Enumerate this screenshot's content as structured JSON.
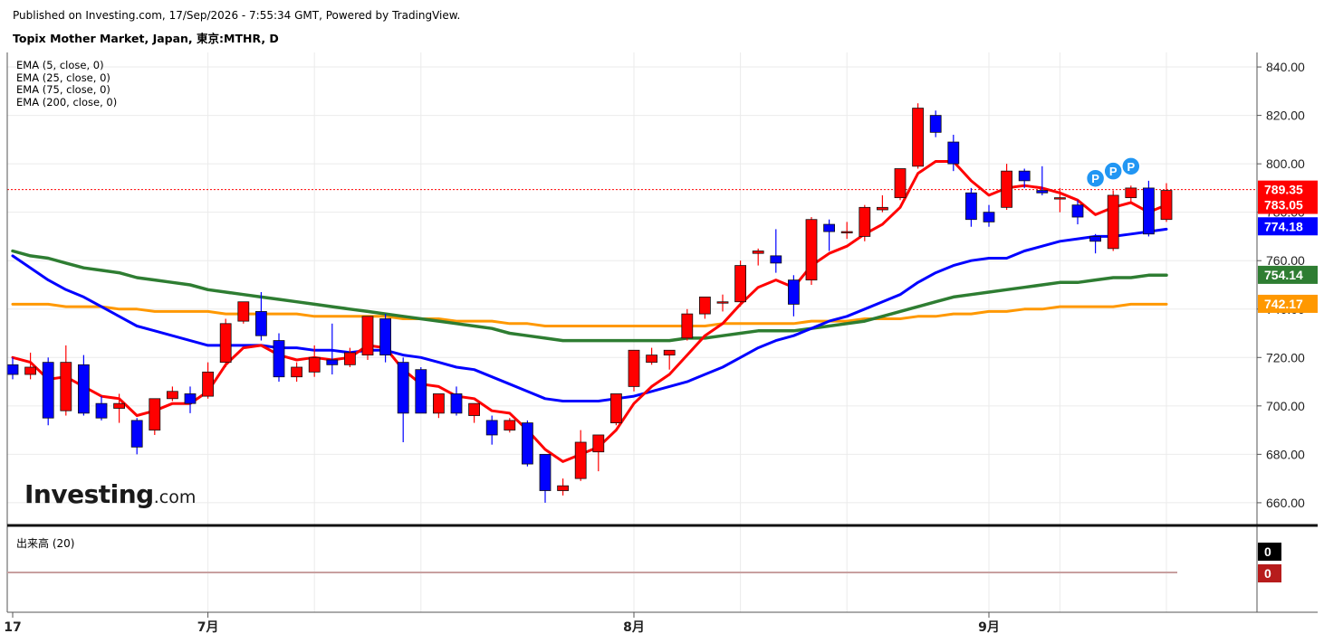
{
  "header": {
    "published": "Published on Investing.com, 17/Sep/2026 - 7:55:34 GMT, Powered by TradingView.",
    "title": "Topix Mother Market, Japan, 東京:MTHR, D"
  },
  "legend": [
    "EMA (5, close, 0)",
    "EMA (25, close, 0)",
    "EMA (75, close, 0)",
    "EMA (200, close, 0)"
  ],
  "volume_label": "出来高 (20)",
  "logo": {
    "main": "Investing",
    "sub": ".com"
  },
  "colors": {
    "up": "#ff0000",
    "down": "#0000ff",
    "ema5": "#ff0000",
    "ema25": "#0000ff",
    "ema75": "#2e7d32",
    "ema200": "#ff9800",
    "grid": "#ebebeb",
    "pivot": "#2196f3"
  },
  "chart_data": {
    "type": "candlestick",
    "y_ticks": [
      "840.00",
      "820.00",
      "800.00",
      "780.00",
      "760.00",
      "740.00",
      "720.00",
      "700.00",
      "680.00",
      "660.00"
    ],
    "ylim": [
      651,
      846
    ],
    "x_tick_labels": [
      {
        "label": "17",
        "index": 0
      },
      {
        "label": "7月",
        "index": 11
      },
      {
        "label": "8月",
        "index": 35
      },
      {
        "label": "9月",
        "index": 55
      }
    ],
    "candles": [
      {
        "o": 717,
        "h": 720,
        "l": 711,
        "c": 713
      },
      {
        "o": 713,
        "h": 722,
        "l": 711,
        "c": 716
      },
      {
        "o": 718,
        "h": 720,
        "l": 692,
        "c": 695
      },
      {
        "o": 698,
        "h": 725,
        "l": 696,
        "c": 718
      },
      {
        "o": 717,
        "h": 721,
        "l": 696,
        "c": 697
      },
      {
        "o": 701,
        "h": 704,
        "l": 694,
        "c": 695
      },
      {
        "o": 699,
        "h": 705,
        "l": 693,
        "c": 701
      },
      {
        "o": 694,
        "h": 695,
        "l": 680,
        "c": 683
      },
      {
        "o": 690,
        "h": 703,
        "l": 688,
        "c": 703
      },
      {
        "o": 703,
        "h": 708,
        "l": 702,
        "c": 706
      },
      {
        "o": 705,
        "h": 708,
        "l": 697,
        "c": 701
      },
      {
        "o": 704,
        "h": 718,
        "l": 703,
        "c": 714
      },
      {
        "o": 718,
        "h": 736,
        "l": 716,
        "c": 734
      },
      {
        "o": 735,
        "h": 743,
        "l": 734,
        "c": 743
      },
      {
        "o": 739,
        "h": 747,
        "l": 727,
        "c": 729
      },
      {
        "o": 727,
        "h": 730,
        "l": 710,
        "c": 712
      },
      {
        "o": 712,
        "h": 718,
        "l": 710,
        "c": 716
      },
      {
        "o": 714,
        "h": 725,
        "l": 712,
        "c": 720
      },
      {
        "o": 719,
        "h": 734,
        "l": 713,
        "c": 717
      },
      {
        "o": 717,
        "h": 724,
        "l": 716,
        "c": 722
      },
      {
        "o": 721,
        "h": 737,
        "l": 719,
        "c": 737
      },
      {
        "o": 736,
        "h": 738,
        "l": 718,
        "c": 721
      },
      {
        "o": 718,
        "h": 720,
        "l": 685,
        "c": 697
      },
      {
        "o": 715,
        "h": 716,
        "l": 697,
        "c": 697
      },
      {
        "o": 697,
        "h": 705,
        "l": 695,
        "c": 705
      },
      {
        "o": 705,
        "h": 708,
        "l": 696,
        "c": 697
      },
      {
        "o": 696,
        "h": 701,
        "l": 693,
        "c": 701
      },
      {
        "o": 694,
        "h": 696,
        "l": 684,
        "c": 688
      },
      {
        "o": 690,
        "h": 695,
        "l": 689,
        "c": 694
      },
      {
        "o": 693,
        "h": 694,
        "l": 675,
        "c": 676
      },
      {
        "o": 680,
        "h": 680,
        "l": 660,
        "c": 665
      },
      {
        "o": 665,
        "h": 670,
        "l": 663,
        "c": 667
      },
      {
        "o": 670,
        "h": 690,
        "l": 669,
        "c": 685
      },
      {
        "o": 681,
        "h": 688,
        "l": 673,
        "c": 688
      },
      {
        "o": 693,
        "h": 704,
        "l": 692,
        "c": 705
      },
      {
        "o": 708,
        "h": 723,
        "l": 706,
        "c": 723
      },
      {
        "o": 718,
        "h": 724,
        "l": 717,
        "c": 721
      },
      {
        "o": 721,
        "h": 723,
        "l": 715,
        "c": 723
      },
      {
        "o": 728,
        "h": 740,
        "l": 727,
        "c": 738
      },
      {
        "o": 738,
        "h": 745,
        "l": 736,
        "c": 745
      },
      {
        "o": 743,
        "h": 746,
        "l": 739,
        "c": 743
      },
      {
        "o": 743,
        "h": 760,
        "l": 741,
        "c": 758
      },
      {
        "o": 763,
        "h": 765,
        "l": 758,
        "c": 764
      },
      {
        "o": 762,
        "h": 773,
        "l": 755,
        "c": 759
      },
      {
        "o": 752,
        "h": 754,
        "l": 737,
        "c": 742
      },
      {
        "o": 752,
        "h": 778,
        "l": 750,
        "c": 777
      },
      {
        "o": 775,
        "h": 777,
        "l": 764,
        "c": 772
      },
      {
        "o": 772,
        "h": 776,
        "l": 769,
        "c": 772
      },
      {
        "o": 770,
        "h": 783,
        "l": 768,
        "c": 782
      },
      {
        "o": 781,
        "h": 787,
        "l": 780,
        "c": 782
      },
      {
        "o": 786,
        "h": 798,
        "l": 785,
        "c": 798
      },
      {
        "o": 799,
        "h": 825,
        "l": 798,
        "c": 823
      },
      {
        "o": 820,
        "h": 822,
        "l": 811,
        "c": 813
      },
      {
        "o": 809,
        "h": 812,
        "l": 797,
        "c": 800
      },
      {
        "o": 788,
        "h": 790,
        "l": 774,
        "c": 777
      },
      {
        "o": 780,
        "h": 783,
        "l": 774,
        "c": 776
      },
      {
        "o": 782,
        "h": 800,
        "l": 781,
        "c": 797
      },
      {
        "o": 797,
        "h": 798,
        "l": 790,
        "c": 793
      },
      {
        "o": 789,
        "h": 799,
        "l": 787,
        "c": 788
      },
      {
        "o": 786,
        "h": 790,
        "l": 780,
        "c": 786
      },
      {
        "o": 783,
        "h": 785,
        "l": 775,
        "c": 778
      },
      {
        "o": 770,
        "h": 771,
        "l": 763,
        "c": 768
      },
      {
        "o": 765,
        "h": 789,
        "l": 764,
        "c": 787
      },
      {
        "o": 786,
        "h": 791,
        "l": 784,
        "c": 790
      },
      {
        "o": 790,
        "h": 793,
        "l": 770,
        "c": 771
      },
      {
        "o": 777,
        "h": 792,
        "l": 776,
        "c": 789
      }
    ],
    "ema5": [
      720,
      718,
      711,
      712,
      708,
      704,
      703,
      696,
      698,
      701,
      701,
      706,
      717,
      724,
      725,
      721,
      719,
      720,
      719,
      720,
      725,
      724,
      715,
      709,
      708,
      704,
      703,
      698,
      697,
      690,
      682,
      677,
      680,
      683,
      690,
      701,
      708,
      713,
      721,
      729,
      734,
      742,
      749,
      752,
      749,
      758,
      763,
      766,
      771,
      775,
      782,
      796,
      801,
      801,
      793,
      787,
      790,
      791,
      790,
      788,
      785,
      779,
      782,
      784,
      780,
      783
    ],
    "ema25": [
      762,
      757,
      752,
      748,
      745,
      741,
      737,
      733,
      731,
      729,
      727,
      725,
      725,
      725,
      725,
      724,
      724,
      723,
      723,
      722,
      723,
      723,
      721,
      720,
      718,
      716,
      715,
      712,
      709,
      706,
      703,
      702,
      702,
      702,
      703,
      704,
      706,
      708,
      710,
      713,
      716,
      720,
      724,
      727,
      729,
      732,
      735,
      737,
      740,
      743,
      746,
      751,
      755,
      758,
      760,
      761,
      761,
      764,
      766,
      768,
      769,
      770,
      770,
      771,
      772,
      773
    ],
    "ema75": [
      764,
      762,
      761,
      759,
      757,
      756,
      755,
      753,
      752,
      751,
      750,
      748,
      747,
      746,
      745,
      744,
      743,
      742,
      741,
      740,
      739,
      738,
      737,
      736,
      735,
      734,
      733,
      732,
      730,
      729,
      728,
      727,
      727,
      727,
      727,
      727,
      727,
      727,
      728,
      728,
      729,
      730,
      731,
      731,
      731,
      732,
      733,
      734,
      735,
      737,
      739,
      741,
      743,
      745,
      746,
      747,
      748,
      749,
      750,
      751,
      751,
      752,
      753,
      753,
      754,
      754
    ],
    "ema200": [
      742,
      742,
      742,
      741,
      741,
      741,
      740,
      740,
      739,
      739,
      739,
      739,
      738,
      738,
      738,
      738,
      738,
      737,
      737,
      737,
      737,
      737,
      736,
      736,
      736,
      735,
      735,
      735,
      734,
      734,
      733,
      733,
      733,
      733,
      733,
      733,
      733,
      733,
      733,
      733,
      734,
      734,
      734,
      734,
      734,
      735,
      735,
      735,
      736,
      736,
      736,
      737,
      737,
      738,
      738,
      739,
      739,
      740,
      740,
      741,
      741,
      741,
      741,
      742,
      742,
      742
    ],
    "current_price": 789.35,
    "price_labels": [
      "789.35",
      "783.05",
      "774.18",
      "754.14",
      "742.17"
    ],
    "pivot_markers": [
      {
        "index": 61,
        "price": 794,
        "label": "P"
      },
      {
        "index": 62,
        "price": 797,
        "label": "P"
      },
      {
        "index": 63,
        "price": 799,
        "label": "P"
      }
    ],
    "volume": {
      "labels": [
        "0",
        "0"
      ]
    }
  }
}
